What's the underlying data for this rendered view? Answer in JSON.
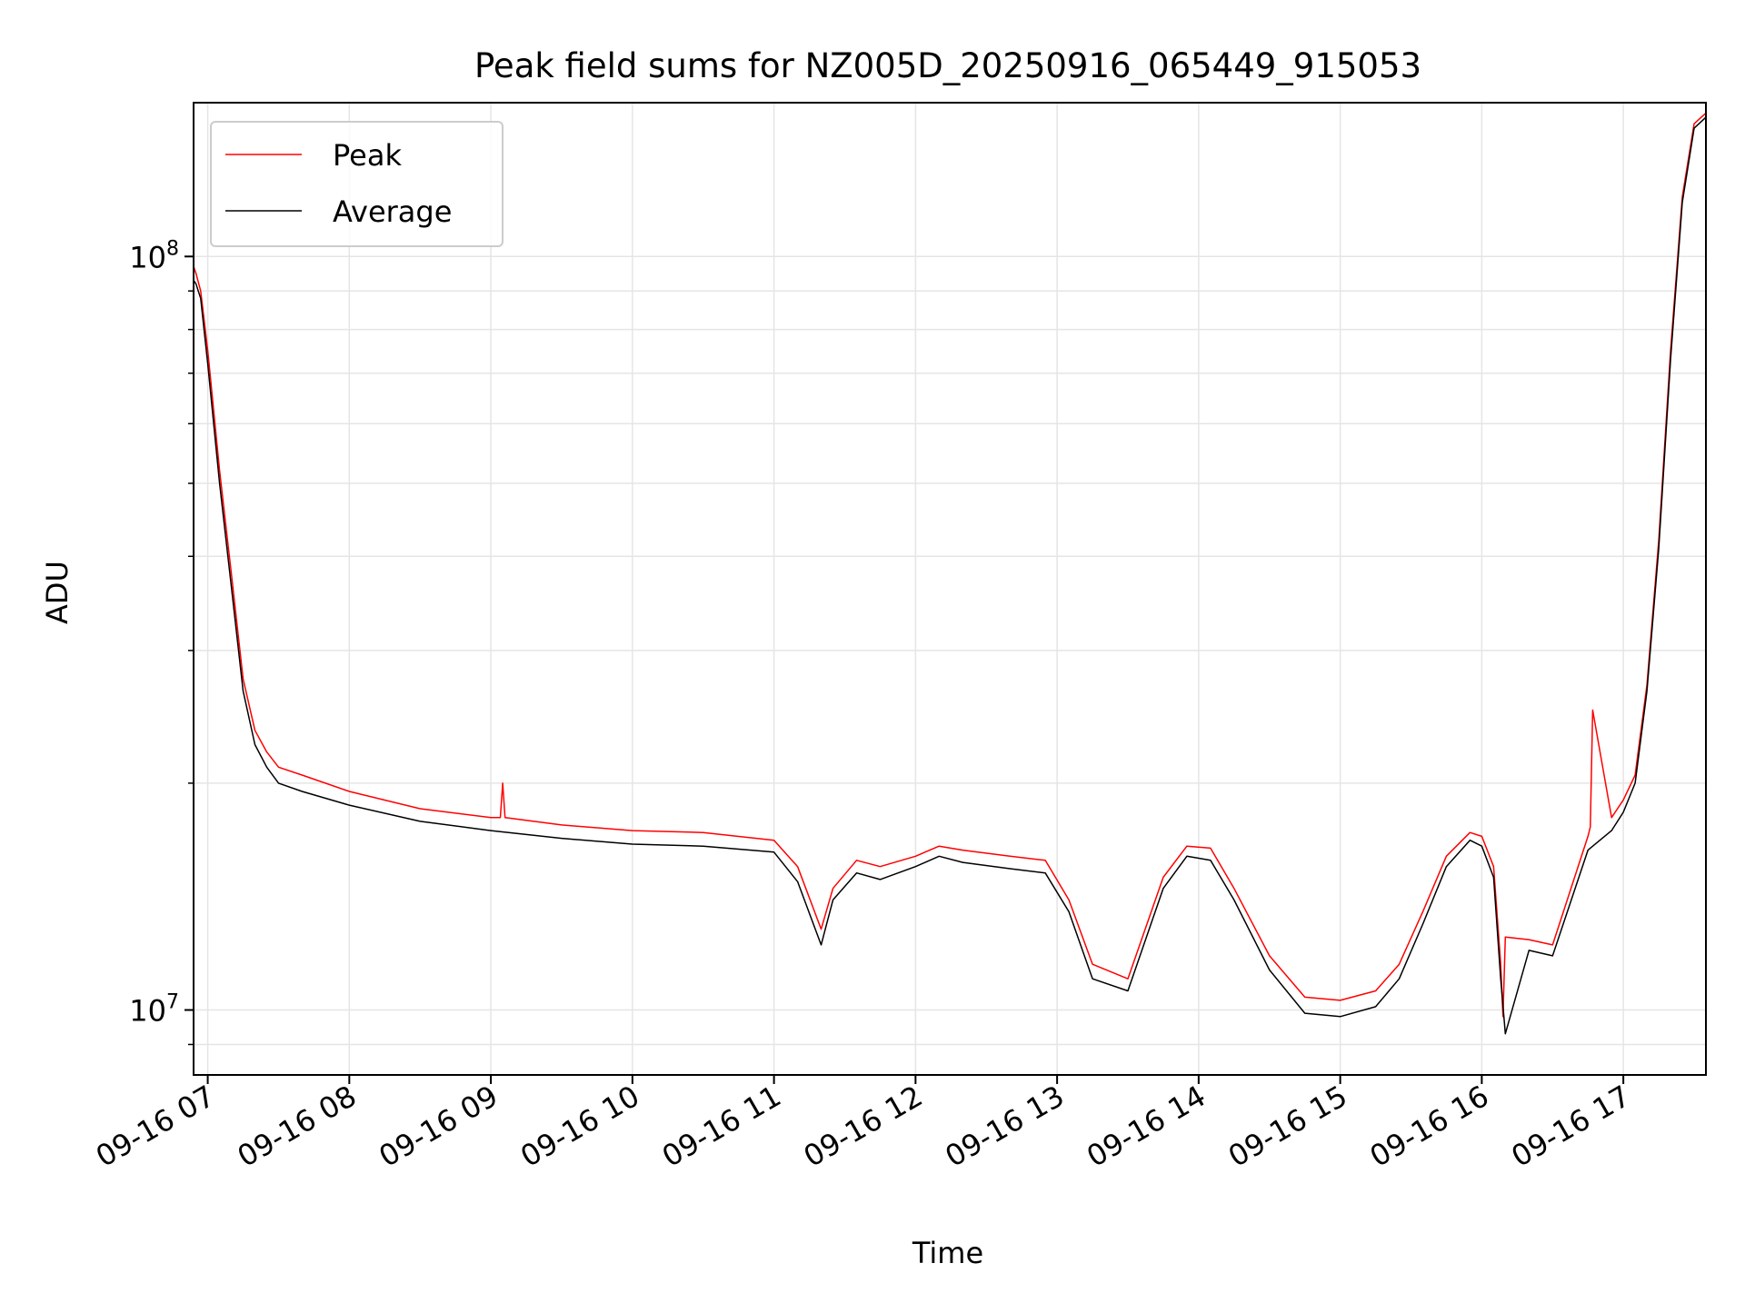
{
  "chart_data": {
    "type": "line",
    "title": "Peak field sums for NZ005D_20250916_065449_915053",
    "xlabel": "Time",
    "ylabel": "ADU",
    "y_scale": "log",
    "ylim": [
      8200000,
      160000000
    ],
    "xlim": [
      "2025-09-16 06:54",
      "2025-09-16 17:35"
    ],
    "x_ticks": [
      "09-16 07",
      "09-16 08",
      "09-16 09",
      "09-16 10",
      "09-16 11",
      "09-16 12",
      "09-16 13",
      "09-16 14",
      "09-16 15",
      "09-16 16",
      "09-16 17"
    ],
    "x_tick_times": [
      "2025-09-16 07:00",
      "2025-09-16 08:00",
      "2025-09-16 09:00",
      "2025-09-16 10:00",
      "2025-09-16 11:00",
      "2025-09-16 12:00",
      "2025-09-16 13:00",
      "2025-09-16 14:00",
      "2025-09-16 15:00",
      "2025-09-16 16:00",
      "2025-09-16 17:00"
    ],
    "y_ticks": [
      {
        "value": 10000000,
        "base": "10",
        "exp": "7"
      },
      {
        "value": 100000000,
        "base": "10",
        "exp": "8"
      }
    ],
    "grid": true,
    "legend_position": "upper-left",
    "series": [
      {
        "name": "Peak",
        "color": "#ff0000",
        "x": [
          "2025-09-16 06:54",
          "2025-09-16 06:55",
          "2025-09-16 06:57",
          "2025-09-16 07:00",
          "2025-09-16 07:05",
          "2025-09-16 07:10",
          "2025-09-16 07:15",
          "2025-09-16 07:20",
          "2025-09-16 07:25",
          "2025-09-16 07:30",
          "2025-09-16 07:40",
          "2025-09-16 08:00",
          "2025-09-16 08:30",
          "2025-09-16 09:00",
          "2025-09-16 09:04",
          "2025-09-16 09:05",
          "2025-09-16 09:06",
          "2025-09-16 09:30",
          "2025-09-16 10:00",
          "2025-09-16 10:30",
          "2025-09-16 11:00",
          "2025-09-16 11:10",
          "2025-09-16 11:20",
          "2025-09-16 11:25",
          "2025-09-16 11:35",
          "2025-09-16 11:45",
          "2025-09-16 12:00",
          "2025-09-16 12:10",
          "2025-09-16 12:20",
          "2025-09-16 12:40",
          "2025-09-16 12:55",
          "2025-09-16 13:05",
          "2025-09-16 13:15",
          "2025-09-16 13:30",
          "2025-09-16 13:45",
          "2025-09-16 13:55",
          "2025-09-16 14:05",
          "2025-09-16 14:15",
          "2025-09-16 14:30",
          "2025-09-16 14:45",
          "2025-09-16 15:00",
          "2025-09-16 15:15",
          "2025-09-16 15:25",
          "2025-09-16 15:35",
          "2025-09-16 15:45",
          "2025-09-16 15:55",
          "2025-09-16 16:00",
          "2025-09-16 16:05",
          "2025-09-16 16:08",
          "2025-09-16 16:09",
          "2025-09-16 16:10",
          "2025-09-16 16:20",
          "2025-09-16 16:30",
          "2025-09-16 16:45",
          "2025-09-16 16:46",
          "2025-09-16 16:47",
          "2025-09-16 16:55",
          "2025-09-16 17:00",
          "2025-09-16 17:05",
          "2025-09-16 17:10",
          "2025-09-16 17:15",
          "2025-09-16 17:20",
          "2025-09-16 17:25",
          "2025-09-16 17:30",
          "2025-09-16 17:35"
        ],
        "y": [
          97000000,
          95000000,
          90000000,
          75000000,
          52000000,
          38000000,
          27500000,
          23500000,
          22000000,
          21000000,
          20500000,
          19500000,
          18500000,
          18000000,
          18000000,
          20000000,
          18000000,
          17600000,
          17300000,
          17200000,
          16800000,
          15500000,
          12800000,
          14500000,
          15800000,
          15500000,
          16000000,
          16500000,
          16300000,
          16000000,
          15800000,
          14000000,
          11500000,
          11000000,
          15000000,
          16500000,
          16400000,
          14500000,
          11800000,
          10400000,
          10300000,
          10600000,
          11500000,
          13500000,
          16000000,
          17200000,
          17000000,
          15500000,
          11500000,
          9800000,
          12500000,
          12400000,
          12200000,
          17000000,
          17500000,
          25000000,
          18000000,
          19000000,
          20500000,
          27000000,
          42000000,
          75000000,
          120000000,
          150000000,
          155000000
        ]
      },
      {
        "name": "Average",
        "color": "#000000",
        "x": [
          "2025-09-16 06:54",
          "2025-09-16 06:55",
          "2025-09-16 06:57",
          "2025-09-16 07:00",
          "2025-09-16 07:05",
          "2025-09-16 07:10",
          "2025-09-16 07:15",
          "2025-09-16 07:20",
          "2025-09-16 07:25",
          "2025-09-16 07:30",
          "2025-09-16 07:40",
          "2025-09-16 08:00",
          "2025-09-16 08:30",
          "2025-09-16 09:00",
          "2025-09-16 09:30",
          "2025-09-16 10:00",
          "2025-09-16 10:30",
          "2025-09-16 11:00",
          "2025-09-16 11:10",
          "2025-09-16 11:20",
          "2025-09-16 11:25",
          "2025-09-16 11:35",
          "2025-09-16 11:45",
          "2025-09-16 12:00",
          "2025-09-16 12:10",
          "2025-09-16 12:20",
          "2025-09-16 12:40",
          "2025-09-16 12:55",
          "2025-09-16 13:05",
          "2025-09-16 13:15",
          "2025-09-16 13:30",
          "2025-09-16 13:45",
          "2025-09-16 13:55",
          "2025-09-16 14:05",
          "2025-09-16 14:15",
          "2025-09-16 14:30",
          "2025-09-16 14:45",
          "2025-09-16 15:00",
          "2025-09-16 15:15",
          "2025-09-16 15:25",
          "2025-09-16 15:35",
          "2025-09-16 15:45",
          "2025-09-16 15:55",
          "2025-09-16 16:00",
          "2025-09-16 16:05",
          "2025-09-16 16:08",
          "2025-09-16 16:10",
          "2025-09-16 16:20",
          "2025-09-16 16:30",
          "2025-09-16 16:45",
          "2025-09-16 16:55",
          "2025-09-16 17:00",
          "2025-09-16 17:05",
          "2025-09-16 17:10",
          "2025-09-16 17:15",
          "2025-09-16 17:20",
          "2025-09-16 17:25",
          "2025-09-16 17:30",
          "2025-09-16 17:35"
        ],
        "y": [
          93000000,
          92000000,
          88000000,
          72000000,
          50000000,
          36500000,
          26500000,
          22500000,
          21000000,
          20000000,
          19500000,
          18700000,
          17800000,
          17300000,
          16900000,
          16600000,
          16500000,
          16200000,
          14800000,
          12200000,
          14000000,
          15200000,
          14900000,
          15500000,
          16000000,
          15700000,
          15400000,
          15200000,
          13500000,
          11000000,
          10600000,
          14500000,
          16000000,
          15800000,
          14000000,
          11300000,
          9900000,
          9800000,
          10100000,
          11000000,
          13000000,
          15500000,
          16800000,
          16500000,
          15000000,
          11000000,
          9300000,
          12000000,
          11800000,
          16300000,
          17300000,
          18300000,
          20000000,
          26500000,
          41000000,
          73000000,
          118000000,
          148000000,
          153000000
        ]
      }
    ]
  }
}
